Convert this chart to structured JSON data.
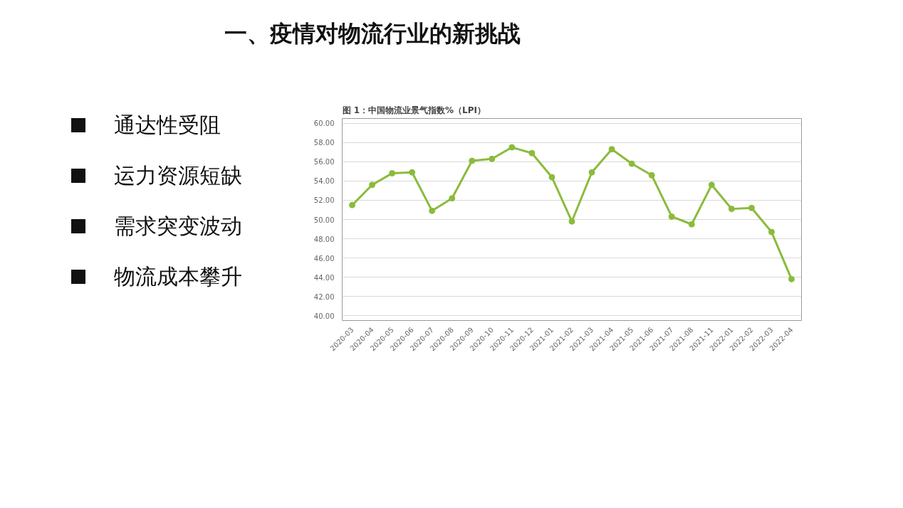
{
  "chart_data": {
    "type": "line",
    "title": "图 1：中国物流业景气指数%（LPI）",
    "annotations": [
      "一、疫情对物流行业的新挑战",
      "通达性受阻",
      "运力资源短缺",
      "需求突变波动",
      "物流成本攀升"
    ],
    "categories": [
      "2020-03",
      "2020-04",
      "2020-05",
      "2020-06",
      "2020-07",
      "2020-08",
      "2020-09",
      "2020-10",
      "2020-11",
      "2020-12",
      "2021-01",
      "2021-02",
      "2021-03",
      "2021-04",
      "2021-05",
      "2021-06",
      "2021-07",
      "2021-08",
      "2021-11",
      "2022-01",
      "2022-02",
      "2022-03",
      "2022-04"
    ],
    "series": [
      {
        "color": "#8bbb3c",
        "values": [
          51.5,
          53.6,
          54.8,
          54.9,
          50.9,
          52.2,
          56.1,
          56.3,
          57.5,
          56.9,
          54.4,
          49.8,
          54.9,
          57.3,
          55.8,
          54.6,
          50.3,
          49.5,
          53.6,
          51.1,
          51.2,
          48.7,
          43.8
        ]
      }
    ],
    "ylim": [
      39.5,
      60.5
    ],
    "yticks": [
      {
        "value": 40,
        "label": "40.00"
      },
      {
        "value": 42,
        "label": "42.00"
      },
      {
        "value": 44,
        "label": "44.00"
      },
      {
        "value": 46,
        "label": "46.00"
      },
      {
        "value": 48,
        "label": "48.00"
      },
      {
        "value": 50,
        "label": "50.00"
      },
      {
        "value": 52,
        "label": "52.00"
      },
      {
        "value": 54,
        "label": "54.00"
      },
      {
        "value": 56,
        "label": "56.00"
      },
      {
        "value": 58,
        "label": "58.00"
      },
      {
        "value": 60,
        "label": "60.00"
      }
    ],
    "grid": "y",
    "marker": "circle",
    "line_style": "solid"
  }
}
